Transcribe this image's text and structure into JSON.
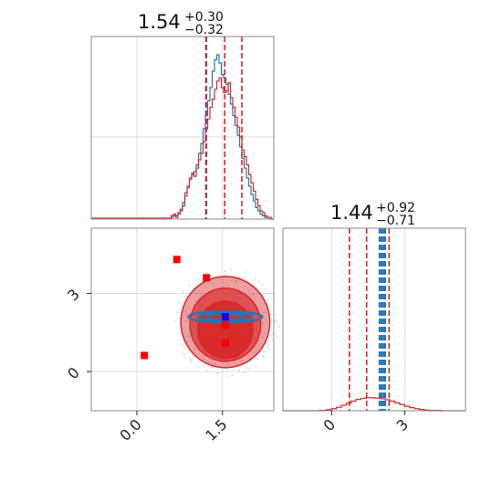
{
  "chart_data": {
    "type": "corner",
    "colors": {
      "red": "#d62728",
      "blue": "#1f77b4",
      "point_red": "#ff0000",
      "point_blue": "#0000ff"
    },
    "panels": [
      {
        "id": "hist-x",
        "kind": "histogram",
        "xlim": [
          -0.8,
          2.4
        ],
        "title": {
          "median": "1.54",
          "plus": "+0.30",
          "minus": "−0.32"
        },
        "quantiles_red": [
          1.22,
          1.54,
          1.84
        ],
        "quantiles_blue": [
          1.21
        ],
        "hist_bins": [
          0.6,
          0.64,
          0.68,
          0.72,
          0.76,
          0.8,
          0.84,
          0.88,
          0.92,
          0.96,
          1.0,
          1.04,
          1.08,
          1.12,
          1.16,
          1.2,
          1.24,
          1.28,
          1.32,
          1.36,
          1.4,
          1.44,
          1.48,
          1.52,
          1.56,
          1.6,
          1.64,
          1.68,
          1.72,
          1.76,
          1.8,
          1.84,
          1.88,
          1.92,
          1.96,
          2.0,
          2.04,
          2.08,
          2.12,
          2.16,
          2.2,
          2.24,
          2.28,
          2.32,
          2.36,
          2.4
        ],
        "hist_red": [
          0.02,
          0.03,
          0.01,
          0.04,
          0.06,
          0.1,
          0.16,
          0.2,
          0.25,
          0.28,
          0.26,
          0.31,
          0.36,
          0.4,
          0.47,
          0.55,
          0.61,
          0.68,
          0.73,
          0.79,
          0.84,
          0.86,
          0.8,
          0.77,
          0.78,
          0.83,
          0.74,
          0.68,
          0.62,
          0.56,
          0.5,
          0.42,
          0.38,
          0.33,
          0.27,
          0.22,
          0.17,
          0.12,
          0.08,
          0.05,
          0.04,
          0.02,
          0.01,
          0.01,
          0.0
        ],
        "hist_blue": [
          0.01,
          0.02,
          0.02,
          0.03,
          0.05,
          0.08,
          0.14,
          0.19,
          0.24,
          0.27,
          0.29,
          0.33,
          0.4,
          0.46,
          0.55,
          0.63,
          0.72,
          0.8,
          0.9,
          0.97,
          1.0,
          0.95,
          0.88,
          0.86,
          0.82,
          0.76,
          0.7,
          0.63,
          0.57,
          0.51,
          0.44,
          0.37,
          0.31,
          0.25,
          0.2,
          0.15,
          0.11,
          0.07,
          0.05,
          0.03,
          0.02,
          0.01,
          0.01,
          0.0,
          0.0
        ]
      },
      {
        "id": "hist-y",
        "kind": "histogram",
        "xlim": [
          -2.0,
          5.5
        ],
        "xticks": [
          0,
          3
        ],
        "xtick_labels": [
          "0",
          "3"
        ],
        "title": {
          "median": "1.44",
          "plus": "+0.92",
          "minus": "−0.71"
        },
        "quantiles_red": [
          0.73,
          1.44,
          2.36
        ],
        "quantiles_blue": [
          1.97,
          2.05,
          2.13,
          2.2
        ],
        "red_curve": {
          "x": [
            -2.0,
            -1.5,
            -1.0,
            -0.5,
            -0.2,
            0.0,
            0.2,
            0.4,
            0.6,
            0.8,
            1.0,
            1.2,
            1.4,
            1.6,
            1.8,
            2.0,
            2.2,
            2.4,
            2.6,
            2.8,
            3.0,
            3.2,
            3.4,
            3.6,
            3.8,
            4.0,
            4.5,
            5.0,
            5.5
          ],
          "y": [
            0.0,
            0.0,
            0.0,
            0.005,
            0.015,
            0.03,
            0.05,
            0.08,
            0.11,
            0.14,
            0.165,
            0.18,
            0.19,
            0.19,
            0.185,
            0.175,
            0.16,
            0.14,
            0.115,
            0.09,
            0.065,
            0.045,
            0.03,
            0.018,
            0.01,
            0.005,
            0.0,
            0.0,
            0.0
          ]
        }
      },
      {
        "id": "scatter-2d",
        "kind": "2d",
        "xlim": [
          -0.8,
          2.4
        ],
        "ylim": [
          -1.5,
          5.5
        ],
        "xticks": [
          0.0,
          1.5
        ],
        "xtick_labels": [
          "0.0",
          "1.5"
        ],
        "yticks": [
          0,
          3
        ],
        "ytick_labels": [
          "0",
          "3"
        ],
        "red_points": [
          [
            0.7,
            4.3
          ],
          [
            1.22,
            3.6
          ],
          [
            0.13,
            0.62
          ],
          [
            1.55,
            1.1
          ],
          [
            1.55,
            1.8
          ]
        ],
        "blue_point": [
          1.55,
          2.1
        ],
        "red_contour_levels": [
          {
            "cx": 1.55,
            "cy": 1.9,
            "rx": 0.78,
            "ry": 1.75,
            "opacity": 0.45
          },
          {
            "cx": 1.55,
            "cy": 1.8,
            "rx": 0.62,
            "ry": 1.4,
            "opacity": 0.65
          },
          {
            "cx": 1.55,
            "cy": 1.6,
            "rx": 0.48,
            "ry": 1.1,
            "opacity": 0.9
          }
        ],
        "blue_contour": {
          "cx": 1.55,
          "cy": 2.1,
          "rx": 0.65,
          "ry": 0.22
        }
      }
    ]
  }
}
